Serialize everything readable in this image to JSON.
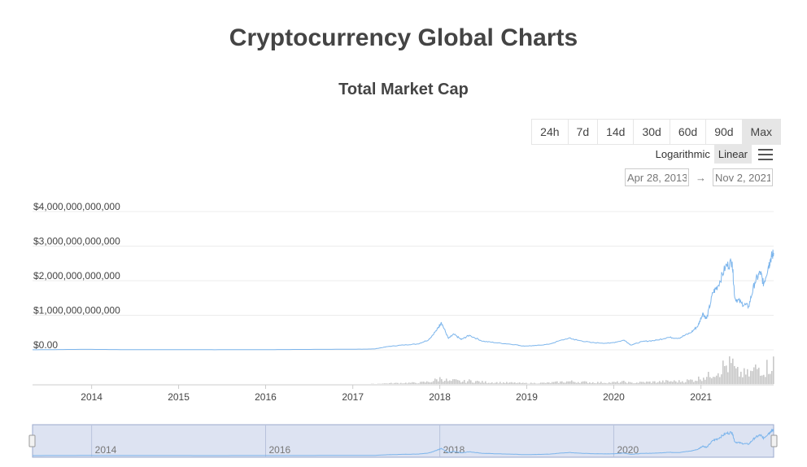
{
  "header": {
    "page_title": "Cryptocurrency Global Charts"
  },
  "range_selector": {
    "buttons": [
      "24h",
      "7d",
      "14d",
      "30d",
      "60d",
      "90d",
      "Max"
    ],
    "active": "Max"
  },
  "scale_toggle": {
    "logarithmic": "Logarithmic",
    "linear": "Linear",
    "active": "Linear"
  },
  "date_range": {
    "from": "Apr 28, 2013",
    "arrow": "→",
    "to": "Nov 2, 2021"
  },
  "colors": {
    "line": "#7cb5ec",
    "volume": "#c8c8c8",
    "navigator_fill": "#dde3f2"
  },
  "chart_data": {
    "type": "line",
    "title": "Total Market Cap",
    "y_ticks": [
      "$0.00",
      "$1,000,000,000,000",
      "$2,000,000,000,000",
      "$3,000,000,000,000",
      "$4,000,000,000,000"
    ],
    "x_ticks": [
      "2014",
      "2015",
      "2016",
      "2017",
      "2018",
      "2019",
      "2020",
      "2021"
    ],
    "navigator_ticks": [
      "2014",
      "2016",
      "2018",
      "2020"
    ],
    "ylim": [
      0,
      4000000000000
    ],
    "xlim": [
      "2013-04-28",
      "2021-11-02"
    ],
    "grid": true,
    "series": [
      {
        "x": [
          "2013-04-28",
          "2013-12-01",
          "2014-06-01",
          "2015-01-01",
          "2015-06-01",
          "2016-01-01",
          "2016-06-01",
          "2017-01-01",
          "2017-04-01",
          "2017-06-01",
          "2017-08-01",
          "2017-10-01",
          "2017-11-15",
          "2017-12-20",
          "2018-01-07",
          "2018-02-06",
          "2018-03-01",
          "2018-04-01",
          "2018-05-05",
          "2018-06-30",
          "2018-09-01",
          "2018-11-15",
          "2018-12-15",
          "2019-02-01",
          "2019-04-01",
          "2019-06-26",
          "2019-08-01",
          "2019-09-30",
          "2019-12-15",
          "2020-02-14",
          "2020-03-13",
          "2020-05-01",
          "2020-07-01",
          "2020-08-15",
          "2020-10-01",
          "2020-11-20",
          "2020-12-20",
          "2021-01-08",
          "2021-01-25",
          "2021-02-20",
          "2021-03-13",
          "2021-04-14",
          "2021-05-12",
          "2021-05-23",
          "2021-06-20",
          "2021-07-20",
          "2021-08-15",
          "2021-09-07",
          "2021-09-21",
          "2021-10-10",
          "2021-10-21",
          "2021-11-02"
        ],
        "values": [
          1500000000.0,
          15000000000.0,
          7000000000.0,
          5000000000.0,
          3500000000.0,
          7000000000.0,
          12000000000.0,
          18000000000.0,
          25000000000.0,
          100000000000.0,
          140000000000.0,
          170000000000.0,
          290000000000.0,
          580000000000.0,
          800000000000.0,
          330000000000.0,
          450000000000.0,
          300000000000.0,
          420000000000.0,
          250000000000.0,
          200000000000.0,
          150000000000.0,
          110000000000.0,
          120000000000.0,
          160000000000.0,
          340000000000.0,
          280000000000.0,
          210000000000.0,
          190000000000.0,
          280000000000.0,
          140000000000.0,
          240000000000.0,
          280000000000.0,
          360000000000.0,
          340000000000.0,
          500000000000.0,
          700000000000.0,
          1050000000000.0,
          900000000000.0,
          1650000000000.0,
          1850000000000.0,
          2400000000000.0,
          2550000000000.0,
          1500000000000.0,
          1350000000000.0,
          1250000000000.0,
          1950000000000.0,
          2250000000000.0,
          1900000000000.0,
          2400000000000.0,
          2650000000000.0,
          2800000000000.0
        ]
      }
    ]
  }
}
